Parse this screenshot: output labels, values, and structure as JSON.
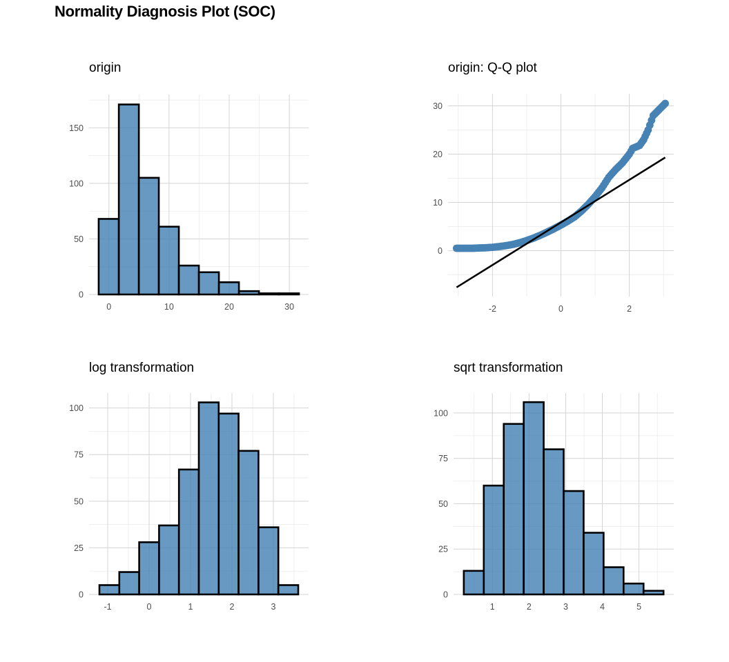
{
  "title": "Normality Diagnosis Plot (SOC)",
  "colors": {
    "fill": "#4682B4",
    "outline": "#000000",
    "point": "#4682B4",
    "line": "#000000"
  },
  "chart_data": [
    {
      "id": "origin",
      "type": "bar",
      "title": "origin",
      "bin_edges": [
        -1.7,
        1.65,
        4.98,
        8.3,
        11.63,
        14.96,
        18.29,
        21.62,
        24.95,
        28.27,
        31.6
      ],
      "values": [
        68,
        171,
        105,
        61,
        26,
        20,
        11,
        3,
        1,
        1
      ],
      "xlim": [
        -3.3,
        33.2
      ],
      "ylim": [
        0,
        180
      ],
      "xticks": [
        0,
        10,
        20,
        30
      ],
      "yticks": [
        0,
        50,
        100,
        150
      ],
      "xlabel": "",
      "ylabel": "",
      "grid": true
    },
    {
      "id": "qq",
      "type": "scatter",
      "title": "origin: Q-Q plot",
      "xlim": [
        -3.3,
        3.3
      ],
      "ylim": [
        -9.5,
        32.5
      ],
      "xticks": [
        -2,
        0,
        2
      ],
      "yticks": [
        0,
        10,
        20,
        30
      ],
      "n": 467,
      "points": [
        [
          -3.05,
          0.5
        ],
        [
          -2.78,
          0.5
        ],
        [
          -2.58,
          0.5
        ],
        [
          -2.42,
          0.55
        ],
        [
          -2.2,
          0.6
        ],
        [
          -2.0,
          0.7
        ],
        [
          -1.8,
          0.85
        ],
        [
          -1.6,
          1.05
        ],
        [
          -1.4,
          1.3
        ],
        [
          -1.2,
          1.65
        ],
        [
          -1.0,
          2.1
        ],
        [
          -0.8,
          2.6
        ],
        [
          -0.6,
          3.2
        ],
        [
          -0.4,
          3.85
        ],
        [
          -0.2,
          4.55
        ],
        [
          0.0,
          5.3
        ],
        [
          0.2,
          6.1
        ],
        [
          0.4,
          7.0
        ],
        [
          0.6,
          8.2
        ],
        [
          0.8,
          9.6
        ],
        [
          1.0,
          11.2
        ],
        [
          1.2,
          13.0
        ],
        [
          1.4,
          15.2
        ],
        [
          1.6,
          16.8
        ],
        [
          1.8,
          18.2
        ],
        [
          2.0,
          20.0
        ],
        [
          2.1,
          21.2
        ],
        [
          2.3,
          21.8
        ],
        [
          2.42,
          23.0
        ],
        [
          2.55,
          25.0
        ],
        [
          2.7,
          28.0
        ],
        [
          3.05,
          30.5
        ]
      ],
      "line": {
        "x": [
          -3.05,
          3.05
        ],
        "y": [
          -7.6,
          19.3
        ]
      },
      "xlabel": "",
      "ylabel": "",
      "grid": true
    },
    {
      "id": "log",
      "type": "bar",
      "title": "log transformation",
      "bin_edges": [
        -1.2,
        -0.72,
        -0.24,
        0.24,
        0.72,
        1.2,
        1.68,
        2.16,
        2.64,
        3.12,
        3.6
      ],
      "values": [
        5,
        12,
        28,
        37,
        67,
        103,
        97,
        77,
        36,
        5
      ],
      "xlim": [
        -1.45,
        3.85
      ],
      "ylim": [
        0,
        108
      ],
      "xticks": [
        -1,
        0,
        1,
        2,
        3
      ],
      "yticks": [
        0,
        25,
        50,
        75,
        100
      ],
      "xlabel": "",
      "ylabel": "",
      "grid": true
    },
    {
      "id": "sqrt",
      "type": "bar",
      "title": "sqrt transformation",
      "bin_edges": [
        0.22,
        0.765,
        1.31,
        1.855,
        2.4,
        2.945,
        3.49,
        4.035,
        4.58,
        5.125,
        5.67
      ],
      "values": [
        13,
        60,
        94,
        106,
        80,
        57,
        34,
        15,
        6,
        2
      ],
      "xlim": [
        -0.06,
        5.95
      ],
      "ylim": [
        0,
        111
      ],
      "xticks": [
        1,
        2,
        3,
        4,
        5
      ],
      "yticks": [
        0,
        25,
        50,
        75,
        100
      ],
      "xlabel": "",
      "ylabel": "",
      "grid": true
    }
  ]
}
